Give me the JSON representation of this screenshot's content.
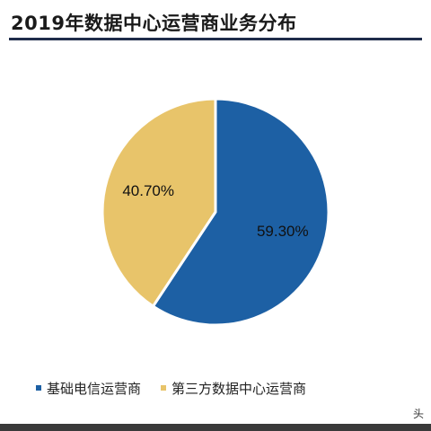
{
  "chart_data": {
    "type": "pie",
    "title": "2019年数据中心运营商业务分布",
    "categories": [
      "基础电信运营商",
      "第三方数据中心运营商"
    ],
    "values": [
      59.3,
      40.7
    ],
    "data_labels": [
      "59.30%",
      "40.70%"
    ],
    "colors": [
      "#1d60a4",
      "#e8c46a"
    ],
    "legend_position": "bottom"
  },
  "watermark": "头"
}
